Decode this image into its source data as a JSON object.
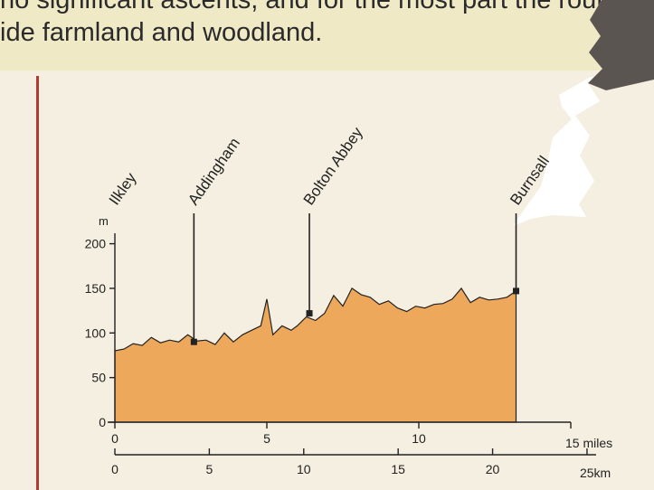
{
  "intro_text": {
    "line1": "no significant ascents, and for the most part the route cros",
    "line2": "ide farmland and woodland."
  },
  "colors": {
    "profile_fill": "#eda85c",
    "ink": "#222222",
    "margin_rule": "#b23b30",
    "paper": "#f4efe0"
  },
  "chart_data": {
    "type": "area",
    "unit_label": "m",
    "ylim": [
      0,
      200
    ],
    "y_ticks": [
      0,
      50,
      100,
      150,
      200
    ],
    "xlim_miles": [
      0,
      15
    ],
    "x_ticks_miles": [
      0,
      5,
      10
    ],
    "x_end_label_miles": "15 miles",
    "x_ticks_km": [
      0,
      5,
      10,
      15,
      20
    ],
    "x_end_label_km": "25km",
    "x_miles": [
      0,
      0.3,
      0.6,
      0.9,
      1.2,
      1.5,
      1.8,
      2.1,
      2.4,
      2.7,
      3.0,
      3.3,
      3.6,
      3.9,
      4.2,
      4.5,
      4.8,
      5.0,
      5.2,
      5.5,
      5.8,
      6.0,
      6.3,
      6.6,
      6.9,
      7.2,
      7.5,
      7.8,
      8.1,
      8.4,
      8.7,
      9.0,
      9.3,
      9.6,
      9.9,
      10.2,
      10.5,
      10.8,
      11.1,
      11.4,
      11.7,
      12.0,
      12.3,
      12.6,
      12.9,
      13.2
    ],
    "elevation_m": [
      80,
      82,
      88,
      86,
      95,
      89,
      92,
      90,
      98,
      91,
      92,
      87,
      100,
      90,
      98,
      103,
      108,
      138,
      98,
      108,
      103,
      108,
      118,
      114,
      122,
      142,
      130,
      150,
      143,
      140,
      132,
      136,
      128,
      124,
      130,
      128,
      132,
      133,
      138,
      150,
      134,
      140,
      137,
      138,
      140,
      147
    ],
    "places": [
      {
        "name": "Ilkley",
        "mile": 0,
        "elev": 80
      },
      {
        "name": "Addingham",
        "mile": 2.6,
        "elev": 90
      },
      {
        "name": "Bolton Abbey",
        "mile": 6.4,
        "elev": 122
      },
      {
        "name": "Burnsall",
        "mile": 13.2,
        "elev": 147
      }
    ]
  }
}
